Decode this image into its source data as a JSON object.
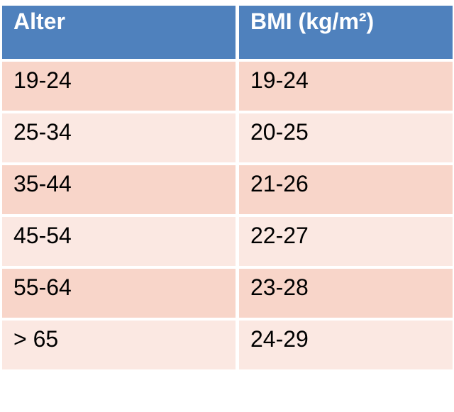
{
  "table": {
    "columns": [
      "Alter",
      "BMI (kg/m²)"
    ],
    "rows": [
      [
        "19-24",
        "19-24"
      ],
      [
        "25-34",
        "20-25"
      ],
      [
        "35-44",
        "21-26"
      ],
      [
        "45-54",
        "22-27"
      ],
      [
        "55-64",
        "23-28"
      ],
      [
        "> 65",
        "24-29"
      ]
    ]
  },
  "colors": {
    "header_background": "#4F81BD",
    "header_text": "#FFFFFF",
    "row_odd_background": "#F8D5C9",
    "row_even_background": "#FBE8E2",
    "cell_text": "#000000",
    "page_background": "#FFFFFF"
  },
  "chart_data": {
    "type": "table",
    "title": "",
    "columns": [
      "Alter",
      "BMI (kg/m²)"
    ],
    "rows": [
      [
        "19-24",
        "19-24"
      ],
      [
        "25-34",
        "20-25"
      ],
      [
        "35-44",
        "21-26"
      ],
      [
        "45-54",
        "22-27"
      ],
      [
        "55-64",
        "23-28"
      ],
      [
        "> 65",
        "24-29"
      ]
    ]
  }
}
